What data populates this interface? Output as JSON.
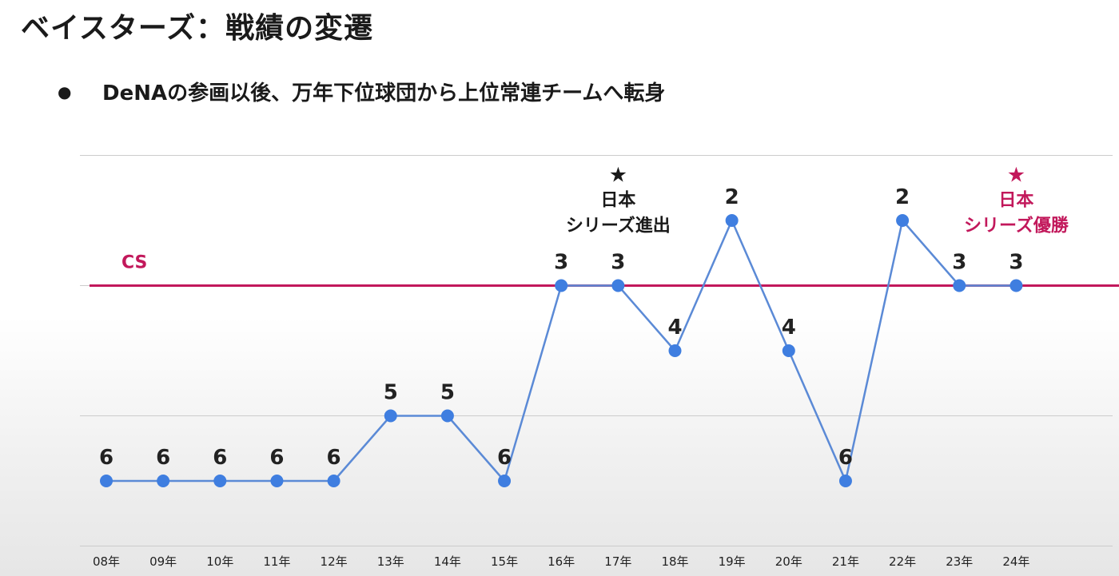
{
  "header": {
    "title": "ベイスターズ：戦績の変遷",
    "bullet_symbol": "●",
    "bullet_text": "DeNAの参画以後、万年下位球団から上位常連チームへ転身"
  },
  "colors": {
    "line": "#5b8ad6",
    "point": "#3f7ee0",
    "cs_line": "#c2185b",
    "grid": "#cccccc",
    "annotation_dark": "#1a1a1a",
    "annotation_accent": "#c2185b"
  },
  "chart_data": {
    "type": "line",
    "categories": [
      "08年",
      "09年",
      "10年",
      "11年",
      "12年",
      "13年",
      "14年",
      "15年",
      "16年",
      "17年",
      "18年",
      "19年",
      "20年",
      "21年",
      "22年",
      "23年",
      "24年"
    ],
    "values": [
      6,
      6,
      6,
      6,
      6,
      5,
      5,
      6,
      3,
      3,
      4,
      2,
      4,
      6,
      2,
      3,
      3
    ],
    "y_inverted": true,
    "ylim": [
      1,
      7
    ],
    "grid": true,
    "reference_line": {
      "label": "CS",
      "value": 3
    },
    "annotations": [
      {
        "category": "17年",
        "symbol": "★",
        "lines": [
          "日本",
          "シリーズ進出"
        ],
        "color": "dark"
      },
      {
        "category": "24年",
        "symbol": "★",
        "lines": [
          "日本",
          "シリーズ優勝"
        ],
        "color": "accent"
      }
    ]
  }
}
